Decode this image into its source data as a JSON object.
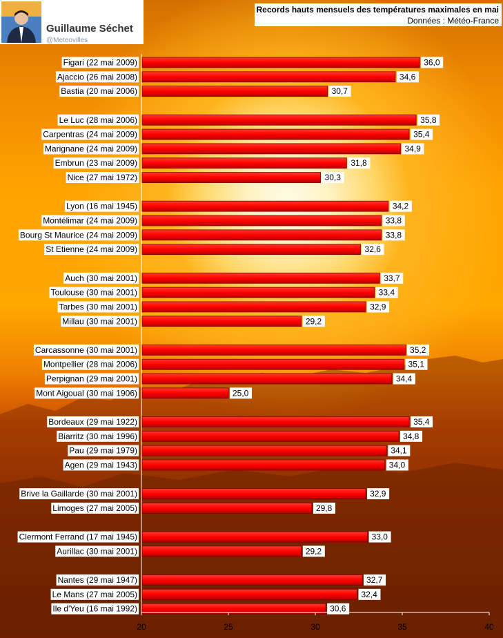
{
  "author": {
    "name": "Guillaume Séchet",
    "handle": "@Meteovilles"
  },
  "chart_data": {
    "type": "bar",
    "orientation": "horizontal",
    "title": "Records hauts mensuels des températures maximales en mai",
    "subtitle": "Données : Météo-France",
    "xlim": [
      20,
      40
    ],
    "xticks": [
      "20",
      "25",
      "30",
      "35",
      "40"
    ],
    "bar_color": "#ff0000",
    "groups": [
      {
        "categories": [
          "Figari (22 mai 2009)",
          "Ajaccio (26 mai 2008)",
          "Bastia (20 mai 2006)"
        ],
        "values": [
          36.0,
          34.6,
          30.7
        ],
        "value_labels": [
          "36,0",
          "34,6",
          "30,7"
        ]
      },
      {
        "categories": [
          "Le Luc (28 mai 2006)",
          "Carpentras (24 mai 2009)",
          "Marignane (24 mai 2009)",
          "Embrun (23 mai 2009)",
          "Nice (27 mai 1972)"
        ],
        "values": [
          35.8,
          35.4,
          34.9,
          31.8,
          30.3
        ],
        "value_labels": [
          "35,8",
          "35,4",
          "34,9",
          "31,8",
          "30,3"
        ]
      },
      {
        "categories": [
          "Lyon (16 mai 1945)",
          "Montélimar (24 mai 2009)",
          "Bourg St Maurice (24 mai 2009)",
          "St Etienne (24 mai 2009)"
        ],
        "values": [
          34.2,
          33.8,
          33.8,
          32.6
        ],
        "value_labels": [
          "34,2",
          "33,8",
          "33,8",
          "32,6"
        ]
      },
      {
        "categories": [
          "Auch (30 mai 2001)",
          "Toulouse (30 mai 2001)",
          "Tarbes (30 mai 2001)",
          "Millau (30 mai 2001)"
        ],
        "values": [
          33.7,
          33.4,
          32.9,
          29.2
        ],
        "value_labels": [
          "33,7",
          "33,4",
          "32,9",
          "29,2"
        ]
      },
      {
        "categories": [
          "Carcassonne (30 mai 2001)",
          "Montpellier (28 mai 2006)",
          "Perpignan (29 mai 2001)",
          "Mont Aigoual (30 mai 1906)"
        ],
        "values": [
          35.2,
          35.1,
          34.4,
          25.0
        ],
        "value_labels": [
          "35,2",
          "35,1",
          "34,4",
          "25,0"
        ]
      },
      {
        "categories": [
          "Bordeaux (29 mai 1922)",
          "Biarritz (30 mai 1996)",
          "Pau (29 mai 1979)",
          "Agen (29 mai 1943)"
        ],
        "values": [
          35.4,
          34.8,
          34.1,
          34.0
        ],
        "value_labels": [
          "35,4",
          "34,8",
          "34,1",
          "34,0"
        ]
      },
      {
        "categories": [
          "Brive la Gaillarde (30 mai 2001)",
          "Limoges (27 mai 2005)"
        ],
        "values": [
          32.9,
          29.8
        ],
        "value_labels": [
          "32,9",
          "29,8"
        ]
      },
      {
        "categories": [
          "Clermont Ferrand (17 mai 1945)",
          "Aurillac (30 mai 2001)"
        ],
        "values": [
          33.0,
          29.2
        ],
        "value_labels": [
          "33,0",
          "29,2"
        ]
      },
      {
        "categories": [
          "Nantes (29 mai 1947)",
          "Le Mans (27 mai 2005)",
          "Ile d'Yeu (16 mai 1992)"
        ],
        "values": [
          32.7,
          32.4,
          30.6
        ],
        "value_labels": [
          "32,7",
          "32,4",
          "30,6"
        ]
      }
    ]
  }
}
